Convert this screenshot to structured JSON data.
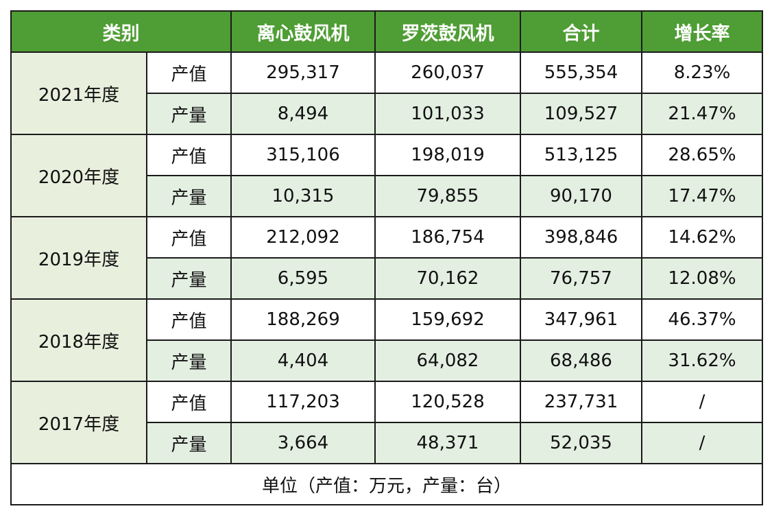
{
  "headers": [
    "类别",
    "离心鼓风机",
    "罗茨鼓风机",
    "合计",
    "增长率"
  ],
  "years": [
    {
      "year": "2021年度",
      "rows": [
        {
          "metric": "产值",
          "centrifugal": "295,317",
          "roots": "260,037",
          "total": "555,354",
          "growth": "8.23%"
        },
        {
          "metric": "产量",
          "centrifugal": "8,494",
          "roots": "101,033",
          "total": "109,527",
          "growth": "21.47%"
        }
      ]
    },
    {
      "year": "2020年度",
      "rows": [
        {
          "metric": "产值",
          "centrifugal": "315,106",
          "roots": "198,019",
          "total": "513,125",
          "growth": "28.65%"
        },
        {
          "metric": "产量",
          "centrifugal": "10,315",
          "roots": "79,855",
          "total": "90,170",
          "growth": "17.47%"
        }
      ]
    },
    {
      "year": "2019年度",
      "rows": [
        {
          "metric": "产值",
          "centrifugal": "212,092",
          "roots": "186,754",
          "total": "398,846",
          "growth": "14.62%"
        },
        {
          "metric": "产量",
          "centrifugal": "6,595",
          "roots": "70,162",
          "total": "76,757",
          "growth": "12.08%"
        }
      ]
    },
    {
      "year": "2018年度",
      "rows": [
        {
          "metric": "产值",
          "centrifugal": "188,269",
          "roots": "159,692",
          "total": "347,961",
          "growth": "46.37%"
        },
        {
          "metric": "产量",
          "centrifugal": "4,404",
          "roots": "64,082",
          "total": "68,486",
          "growth": "31.62%"
        }
      ]
    },
    {
      "year": "2017年度",
      "rows": [
        {
          "metric": "产值",
          "centrifugal": "117,203",
          "roots": "120,528",
          "total": "237,731",
          "growth": "/"
        },
        {
          "metric": "产量",
          "centrifugal": "3,664",
          "roots": "48,371",
          "total": "52,035",
          "growth": "/"
        }
      ]
    }
  ],
  "note": "单位（产值：万元，产量：台）",
  "colors": {
    "header": "#4f9d35",
    "year_cell": "#e9efdd",
    "qty_row": "#e3efe1",
    "note_text": "#d6232a"
  }
}
